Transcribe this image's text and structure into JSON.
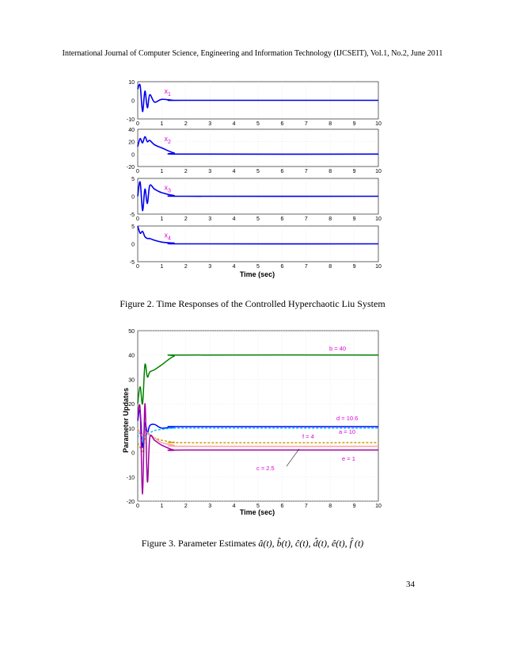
{
  "header": "International Journal of Computer Science, Engineering and Information Technology (IJCSEIT), Vol.1, No.2, June 2011",
  "figure2": {
    "caption": "Figure 2. Time Responses of the Controlled Hyperchaotic Liu System",
    "xlabel": "Time (sec)",
    "xticks": [
      "0",
      "1",
      "2",
      "3",
      "4",
      "5",
      "6",
      "7",
      "8",
      "9",
      "10"
    ],
    "panels": [
      {
        "label": "x",
        "sub": "1",
        "yticks": [
          "10",
          "0",
          "-10"
        ],
        "ylim": [
          -10,
          10
        ]
      },
      {
        "label": "x",
        "sub": "2",
        "yticks": [
          "40",
          "20",
          "0",
          "-20"
        ],
        "ylim": [
          -20,
          40
        ]
      },
      {
        "label": "x",
        "sub": "3",
        "yticks": [
          "5",
          "0",
          "-5"
        ],
        "ylim": [
          -5,
          5
        ]
      },
      {
        "label": "x",
        "sub": "4",
        "yticks": [
          "5",
          "0",
          "-5"
        ],
        "ylim": [
          -5,
          5
        ]
      }
    ]
  },
  "figure3": {
    "caption_prefix": "Figure 3.  Parameter Estimates",
    "caption_math": "â(t),  b̂(t),  ĉ(t),  d̂(t),  ê(t),  f̂ (t)",
    "xlabel": "Time (sec)",
    "ylabel": "Parameter Updates",
    "yticks": [
      "50",
      "40",
      "30",
      "20",
      "10",
      "0",
      "-10",
      "-20"
    ],
    "xticks": [
      "0",
      "1",
      "2",
      "3",
      "4",
      "5",
      "6",
      "7",
      "8",
      "9",
      "10"
    ],
    "annotations": [
      "b = 40",
      "d = 10.6",
      "a = 10",
      "f = 4",
      "c = 2.5",
      "e = 1"
    ]
  },
  "chart_data": [
    {
      "type": "line",
      "xlabel": "Time (sec)",
      "x": [
        0,
        0.1,
        0.2,
        0.3,
        0.4,
        0.5,
        0.7,
        1.0,
        1.5,
        2.0,
        10
      ],
      "series": [
        {
          "name": "x1",
          "values": [
            6,
            8,
            -6,
            5,
            -4,
            3,
            -1,
            0.5,
            0,
            0,
            0
          ],
          "ylim": [
            -10,
            10
          ]
        },
        {
          "name": "x2",
          "values": [
            12,
            25,
            18,
            28,
            20,
            22,
            15,
            10,
            2,
            0,
            0
          ],
          "ylim": [
            -20,
            40
          ]
        },
        {
          "name": "x3",
          "values": [
            0,
            4,
            -4,
            2,
            -2,
            3,
            2,
            1,
            0.2,
            0,
            0
          ],
          "ylim": [
            -5,
            5
          ]
        },
        {
          "name": "x4",
          "values": [
            5,
            3,
            3.5,
            2,
            1.5,
            1.5,
            1,
            0.5,
            0.2,
            0,
            0
          ],
          "ylim": [
            -5,
            5
          ]
        }
      ],
      "xlim": [
        0,
        10
      ]
    },
    {
      "type": "line",
      "xlabel": "Time (sec)",
      "ylabel": "Parameter Updates",
      "xlim": [
        0,
        10
      ],
      "ylim": [
        -20,
        50
      ],
      "x": [
        0,
        0.1,
        0.2,
        0.3,
        0.4,
        0.5,
        0.7,
        1.0,
        1.5,
        2.0,
        10
      ],
      "series": [
        {
          "name": "b = 40",
          "color": "#008000",
          "values": [
            20,
            27,
            20,
            36,
            31,
            33,
            34,
            36,
            39.5,
            40,
            40
          ]
        },
        {
          "name": "d = 10.6",
          "color": "#0000ff",
          "values": [
            13,
            17,
            2,
            12,
            8,
            11,
            11.5,
            10,
            10.5,
            10.6,
            10.6
          ]
        },
        {
          "name": "a = 10",
          "color": "#00bfff",
          "values": [
            6,
            8,
            4,
            10,
            7,
            8,
            9,
            9.5,
            10,
            10,
            10
          ]
        },
        {
          "name": "f = 4",
          "color": "#c8a000",
          "values": [
            4,
            2,
            0,
            6,
            8,
            7,
            6,
            5,
            4.2,
            4,
            4
          ]
        },
        {
          "name": "c = 2.5",
          "color": "#ffa0a0",
          "values": [
            10,
            8,
            7,
            9,
            8,
            7,
            6,
            4,
            3,
            2.5,
            2.5
          ]
        },
        {
          "name": "e = 1",
          "color": "#a000a0",
          "values": [
            14,
            18,
            -17,
            20,
            -12,
            6,
            5,
            3,
            1,
            1,
            1
          ]
        }
      ]
    }
  ]
}
